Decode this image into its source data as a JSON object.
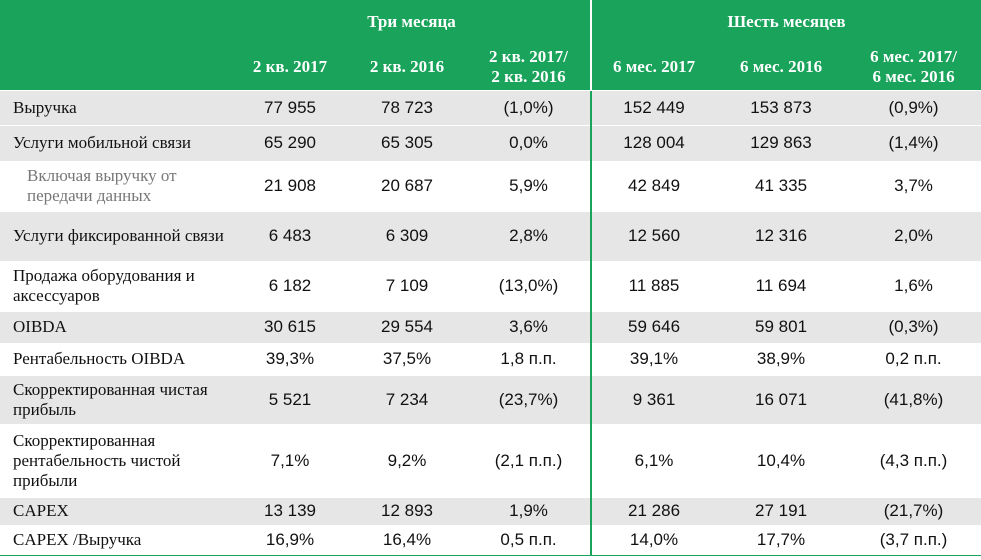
{
  "header": {
    "group1": "Три месяца",
    "group2": "Шесть месяцев",
    "columns": [
      "2 кв. 2017",
      "2 кв. 2016",
      "2 кв. 2017/\n2 кв. 2016",
      "6 мес. 2017",
      "6 мес. 2016",
      "6 мес. 2017/\n6 мес. 2016"
    ]
  },
  "rows": [
    {
      "label": "Выручка",
      "values": [
        "77 955",
        "78 723",
        "(1,0%)",
        "152 449",
        "153 873",
        "(0,9%)"
      ]
    },
    {
      "label": "Услуги мобильной связи",
      "values": [
        "65 290",
        "65 305",
        "0,0%",
        "128 004",
        "129 863",
        "(1,4%)"
      ]
    },
    {
      "label": "Включая выручку от передачи данных",
      "values": [
        "21 908",
        "20 687",
        "5,9%",
        "42 849",
        "41 335",
        "3,7%"
      ]
    },
    {
      "label": "Услуги фиксированной связи",
      "values": [
        "6 483",
        "6 309",
        "2,8%",
        "12 560",
        "12 316",
        "2,0%"
      ]
    },
    {
      "label": "Продажа оборудования и аксессуаров",
      "values": [
        "6 182",
        "7 109",
        "(13,0%)",
        "11 885",
        "11 694",
        "1,6%"
      ]
    },
    {
      "label": "OIBDA",
      "values": [
        "30 615",
        "29 554",
        "3,6%",
        "59 646",
        "59 801",
        "(0,3%)"
      ]
    },
    {
      "label": "Рентабельность OIBDA",
      "values": [
        "39,3%",
        "37,5%",
        "1,8 п.п.",
        "39,1%",
        "38,9%",
        "0,2 п.п."
      ]
    },
    {
      "label": "Скорректированная чистая прибыль",
      "values": [
        "5 521",
        "7 234",
        "(23,7%)",
        "9 361",
        "16 071",
        "(41,8%)"
      ]
    },
    {
      "label": "Скорректированная рентабельность чистой прибыли",
      "values": [
        "7,1%",
        "9,2%",
        "(2,1 п.п.)",
        "6,1%",
        "10,4%",
        "(4,3 п.п.)"
      ]
    },
    {
      "label": "CAPEX",
      "values": [
        "13 139",
        "12 893",
        "1,9%",
        "21 286",
        "27 191",
        "(21,7%)"
      ]
    },
    {
      "label": "CAPEX /Выручка",
      "values": [
        "16,9%",
        "16,4%",
        "0,5 п.п.",
        "14,0%",
        "17,7%",
        "(3,7 п.п.)"
      ]
    }
  ]
}
